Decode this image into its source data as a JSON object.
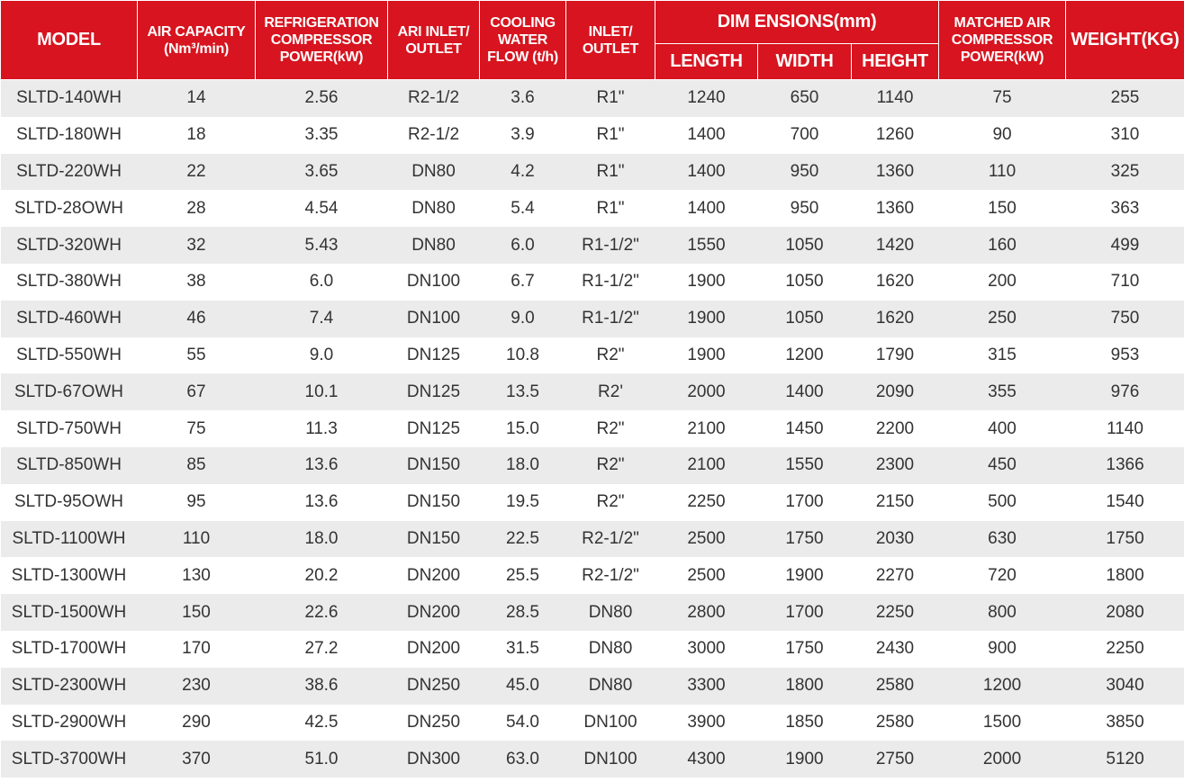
{
  "header": {
    "columns": [
      {
        "lines": [
          "MODEL"
        ]
      },
      {
        "lines": [
          "AIR CAPACITY",
          "(Nm³/min)"
        ]
      },
      {
        "lines": [
          "REFRIGERATION",
          "COMPRESSOR",
          "POWER(kW)"
        ]
      },
      {
        "lines": [
          "ARI INLET/",
          "OUTLET"
        ]
      },
      {
        "lines": [
          "COOLING",
          "WATER",
          "FLOW (t/h)"
        ]
      },
      {
        "lines": [
          "INLET/",
          "OUTLET"
        ]
      },
      {
        "group": "DIM ENSIONS(mm)",
        "sub": [
          "LENGTH",
          "WIDTH",
          "HEIGHT"
        ]
      },
      {
        "lines": [
          "MATCHED AIR",
          "COMPRESSOR",
          "POWER(kW)"
        ]
      },
      {
        "lines": [
          "WEIGHT(KG)"
        ]
      }
    ]
  },
  "table": {
    "rows": [
      [
        "SLTD-140WH",
        "14",
        "2.56",
        "R2-1/2",
        "3.6",
        "R1\"",
        "1240",
        "650",
        "1140",
        "75",
        "255"
      ],
      [
        "SLTD-180WH",
        "18",
        "3.35",
        "R2-1/2",
        "3.9",
        "R1\"",
        "1400",
        "700",
        "1260",
        "90",
        "310"
      ],
      [
        "SLTD-220WH",
        "22",
        "3.65",
        "DN80",
        "4.2",
        "R1\"",
        "1400",
        "950",
        "1360",
        "110",
        "325"
      ],
      [
        "SLTD-28OWH",
        "28",
        "4.54",
        "DN80",
        "5.4",
        "R1\"",
        "1400",
        "950",
        "1360",
        "150",
        "363"
      ],
      [
        "SLTD-320WH",
        "32",
        "5.43",
        "DN80",
        "6.0",
        "R1-1/2\"",
        "1550",
        "1050",
        "1420",
        "160",
        "499"
      ],
      [
        "SLTD-380WH",
        "38",
        "6.0",
        "DN100",
        "6.7",
        "R1-1/2\"",
        "1900",
        "1050",
        "1620",
        "200",
        "710"
      ],
      [
        "SLTD-460WH",
        "46",
        "7.4",
        "DN100",
        "9.0",
        "R1-1/2\"",
        "1900",
        "1050",
        "1620",
        "250",
        "750"
      ],
      [
        "SLTD-550WH",
        "55",
        "9.0",
        "DN125",
        "10.8",
        "R2\"",
        "1900",
        "1200",
        "1790",
        "315",
        "953"
      ],
      [
        "SLTD-67OWH",
        "67",
        "10.1",
        "DN125",
        "13.5",
        "R2'",
        "2000",
        "1400",
        "2090",
        "355",
        "976"
      ],
      [
        "SLTD-750WH",
        "75",
        "11.3",
        "DN125",
        "15.0",
        "R2\"",
        "2100",
        "1450",
        "2200",
        "400",
        "1140"
      ],
      [
        "SLTD-850WH",
        "85",
        "13.6",
        "DN150",
        "18.0",
        "R2\"",
        "2100",
        "1550",
        "2300",
        "450",
        "1366"
      ],
      [
        "SLTD-95OWH",
        "95",
        "13.6",
        "DN150",
        "19.5",
        "R2\"",
        "2250",
        "1700",
        "2150",
        "500",
        "1540"
      ],
      [
        "SLTD-1100WH",
        "110",
        "18.0",
        "DN150",
        "22.5",
        "R2-1/2\"",
        "2500",
        "1750",
        "2030",
        "630",
        "1750"
      ],
      [
        "SLTD-1300WH",
        "130",
        "20.2",
        "DN200",
        "25.5",
        "R2-1/2\"",
        "2500",
        "1900",
        "2270",
        "720",
        "1800"
      ],
      [
        "SLTD-1500WH",
        "150",
        "22.6",
        "DN200",
        "28.5",
        "DN80",
        "2800",
        "1700",
        "2250",
        "800",
        "2080"
      ],
      [
        "SLTD-1700WH",
        "170",
        "27.2",
        "DN200",
        "31.5",
        "DN80",
        "3000",
        "1750",
        "2430",
        "900",
        "2250"
      ],
      [
        "SLTD-2300WH",
        "230",
        "38.6",
        "DN250",
        "45.0",
        "DN80",
        "3300",
        "1800",
        "2580",
        "1200",
        "3040"
      ],
      [
        "SLTD-2900WH",
        "290",
        "42.5",
        "DN250",
        "54.0",
        "DN100",
        "3900",
        "1850",
        "2580",
        "1500",
        "3850"
      ],
      [
        "SLTD-3700WH",
        "370",
        "51.0",
        "DN300",
        "63.0",
        "DN100",
        "4300",
        "1900",
        "2750",
        "2000",
        "5120"
      ]
    ]
  }
}
